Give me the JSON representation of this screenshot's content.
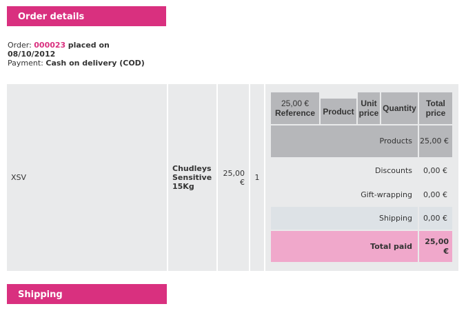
{
  "order_section": {
    "title": "Order details",
    "order_label": "Order:",
    "order_number": "000023",
    "placed_on": "placed on",
    "date": "08/10/2012",
    "payment_label": "Payment:",
    "payment_method": "Cash on delivery (COD)"
  },
  "product_row": {
    "reference": "XSV",
    "product": "Chudleys Sensitive 15Kg",
    "unit_price": "25,00 €",
    "quantity": "1"
  },
  "inner_header": {
    "stray_price": "25,00 €",
    "reference": "Reference",
    "product": "Product",
    "unit_price": "Unit price",
    "quantity": "Quantity",
    "total_price": "Total price"
  },
  "totals": [
    {
      "label": "Products",
      "value": "25,00 €"
    },
    {
      "label": "Discounts",
      "value": "0,00 €"
    },
    {
      "label": "Gift-wrapping",
      "value": "0,00 €"
    },
    {
      "label": "Shipping",
      "value": "0,00 €"
    },
    {
      "label": "Total paid",
      "value": "25,00 €"
    }
  ],
  "shipping_section": {
    "title": "Shipping"
  },
  "colors": {
    "accent": "#d9307f",
    "total_bg": "#f0a8cb",
    "header_bg": "#b6b7ba"
  }
}
